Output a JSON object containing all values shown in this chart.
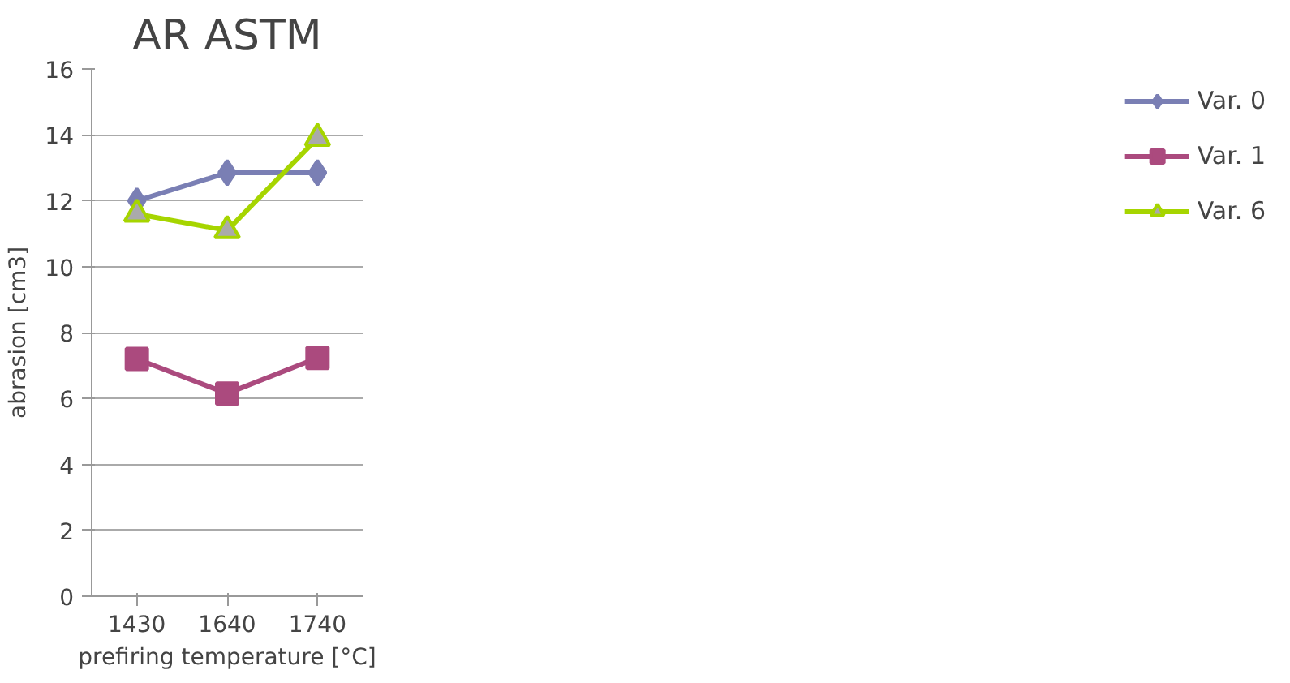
{
  "chart_data": {
    "type": "line",
    "title": "AR ASTM",
    "xlabel": "prefiring temperature [°C]",
    "ylabel": "abrasion [cm3]",
    "categories": [
      "1430",
      "1640",
      "1740"
    ],
    "ylim": [
      0,
      16
    ],
    "yticks": [
      0,
      2,
      4,
      6,
      8,
      10,
      12,
      14,
      16
    ],
    "grid": "y",
    "legend": "right",
    "series": [
      {
        "name": "Var. 0",
        "color": "#7a7fb4",
        "marker": "diamond",
        "values": [
          12,
          12.85,
          12.85
        ]
      },
      {
        "name": "Var. 1",
        "color": "#ab4a7e",
        "marker": "square",
        "values": [
          7.2,
          6.15,
          7.23
        ]
      },
      {
        "name": "Var. 6",
        "color": "#a6d500",
        "marker": "triangle",
        "values": [
          11.6,
          11.1,
          13.9
        ]
      }
    ]
  }
}
